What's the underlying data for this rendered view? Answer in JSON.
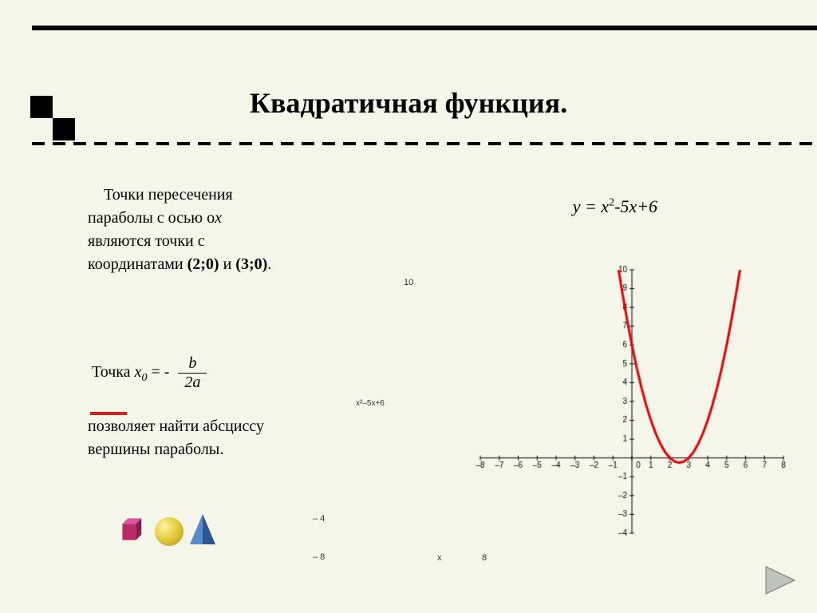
{
  "title": "Квадратичная функция.",
  "paragraph": {
    "line1a": "Точки пересечения",
    "line2a": "параболы  с  осью о",
    "line2b": "х",
    "line3": "являются точки с",
    "line4a": "координатами ",
    "coord1": "(2;0)",
    "line4b": " и ",
    "coord2": "(3;0)",
    "period": "."
  },
  "vertex": {
    "prefix": "Точка ",
    "x": "х",
    "sub": "0",
    "eq": " = - ",
    "num": "b",
    "den": "2a",
    "text2a": "позволяет найти абсциссу",
    "text2b": "вершины параболы."
  },
  "equation": {
    "full": "у = x",
    "sup": "2",
    "rest": "-5x+6",
    "small_label": "x²–5x+6"
  },
  "stray_labels": {
    "ten": "10",
    "minus4": "– 4",
    "minus8": "– 8",
    "x": "x",
    "eight": "8"
  },
  "chart": {
    "type": "line",
    "x_range": [
      -8,
      8
    ],
    "y_range": [
      -4,
      10
    ],
    "x_ticks": [
      -8,
      -7,
      -6,
      -5,
      -4,
      -3,
      -2,
      -1,
      0,
      1,
      2,
      3,
      4,
      5,
      6,
      7,
      8
    ],
    "y_ticks": [
      -4,
      -3,
      -2,
      -1,
      0,
      1,
      2,
      3,
      4,
      5,
      6,
      7,
      8,
      9,
      10
    ],
    "curve_color": "#e00000",
    "curve_width": 3,
    "axis_color": "#000000",
    "tick_font": "10px Arial",
    "series": {
      "formula": "x^2 - 5x + 6",
      "points": [
        [
          -0.7,
          9.99
        ],
        [
          -0.5,
          8.75
        ],
        [
          -0.25,
          7.3125
        ],
        [
          0,
          6
        ],
        [
          0.25,
          4.8125
        ],
        [
          0.5,
          3.75
        ],
        [
          0.75,
          2.8125
        ],
        [
          1,
          2
        ],
        [
          1.25,
          1.3125
        ],
        [
          1.5,
          0.75
        ],
        [
          1.75,
          0.3125
        ],
        [
          2,
          0
        ],
        [
          2.25,
          -0.1875
        ],
        [
          2.5,
          -0.25
        ],
        [
          2.75,
          -0.1875
        ],
        [
          3,
          0
        ],
        [
          3.25,
          0.3125
        ],
        [
          3.5,
          0.75
        ],
        [
          3.75,
          1.3125
        ],
        [
          4,
          2
        ],
        [
          4.25,
          2.8125
        ],
        [
          4.5,
          3.75
        ],
        [
          4.75,
          4.8125
        ],
        [
          5,
          6
        ],
        [
          5.25,
          7.3125
        ],
        [
          5.5,
          8.75
        ],
        [
          5.7,
          9.99
        ]
      ]
    }
  },
  "colors": {
    "background": "#f5f5ea",
    "accent_red": "#d4201e",
    "cube": "#b82c6a",
    "sphere": "#e0c838",
    "pyramid": "#3a6aa8",
    "nav": "#9aa09a"
  }
}
